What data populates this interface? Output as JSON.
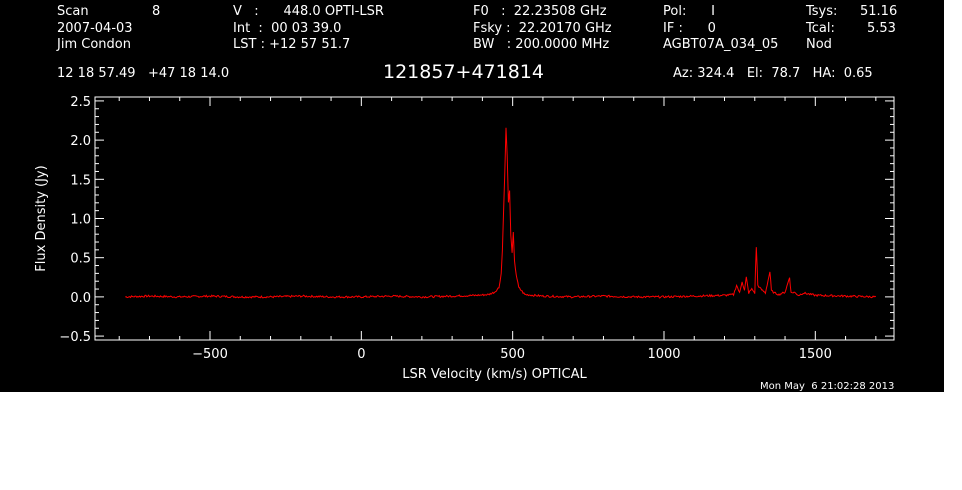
{
  "header": {
    "col1": [
      "Scan",
      "8",
      "2007-04-03",
      "Jim Condon"
    ],
    "col2": [
      "V   :      448.0 OPTI-LSR",
      "Int  :  00 03 39.0",
      "LST : +12 57 51.7"
    ],
    "col3": [
      "F0   :  22.23508 GHz",
      "Fsky :  22.20170 GHz",
      "BW   : 200.0000 MHz"
    ],
    "col4": [
      "Pol:      I",
      "IF :      0",
      "AGBT07A_034_05"
    ],
    "col5": [
      "Tsys:",
      "51.16",
      "Tcal:",
      "5.53",
      "Nod"
    ],
    "coords": "12 18 57.49   +47 18 14.0",
    "source": "121857+471814",
    "azelha": "Az: 324.4   El:  78.7   HA:  0.65"
  },
  "timestamp": "Mon May  6 21:02:28 2013",
  "colors": {
    "background": "#000000",
    "axes": "#ffffff",
    "trace": "#ff0000"
  },
  "chart_data": {
    "type": "line",
    "xlabel": "LSR Velocity (km/s) OPTICAL",
    "ylabel": "Flux Density (Jy)",
    "xlim": [
      -880,
      1760
    ],
    "ylim": [
      -0.55,
      2.55
    ],
    "xticks": [
      -500,
      0,
      500,
      1000,
      1500
    ],
    "xtick_labels": [
      "−500",
      "0",
      "500",
      "1000",
      "1500"
    ],
    "yticks": [
      -0.5,
      0.0,
      0.5,
      1.0,
      1.5,
      2.0,
      2.5
    ],
    "ytick_labels": [
      "−0.5",
      "0.0",
      "0.5",
      "1.0",
      "1.5",
      "2.0",
      "2.5"
    ],
    "series": [
      {
        "color": "#ff0000",
        "x": [
          -780,
          -700,
          -600,
          -500,
          -400,
          -300,
          -200,
          -100,
          0,
          100,
          200,
          300,
          380,
          420,
          440,
          455,
          462,
          466,
          470,
          474,
          478,
          482,
          486,
          490,
          494,
          498,
          502,
          506,
          512,
          520,
          540,
          600,
          700,
          800,
          900,
          1000,
          1100,
          1200,
          1230,
          1240,
          1250,
          1258,
          1266,
          1272,
          1280,
          1290,
          1300,
          1305,
          1310,
          1320,
          1335,
          1350,
          1355,
          1365,
          1380,
          1400,
          1415,
          1420,
          1430,
          1445,
          1460,
          1500,
          1600,
          1700
        ],
        "y": [
          0.0,
          0.01,
          0.0,
          0.01,
          0.0,
          0.0,
          0.01,
          0.0,
          0.0,
          0.01,
          0.0,
          0.01,
          0.02,
          0.03,
          0.06,
          0.12,
          0.3,
          0.6,
          1.1,
          1.6,
          2.15,
          1.8,
          1.2,
          1.35,
          0.8,
          0.55,
          0.82,
          0.45,
          0.28,
          0.12,
          0.03,
          0.01,
          0.0,
          0.01,
          0.0,
          0.0,
          0.01,
          0.02,
          0.03,
          0.15,
          0.05,
          0.2,
          0.08,
          0.25,
          0.05,
          0.1,
          0.05,
          0.64,
          0.15,
          0.1,
          0.05,
          0.32,
          0.08,
          0.05,
          0.03,
          0.06,
          0.25,
          0.05,
          0.06,
          0.02,
          0.05,
          0.02,
          0.01,
          0.0
        ]
      }
    ]
  }
}
